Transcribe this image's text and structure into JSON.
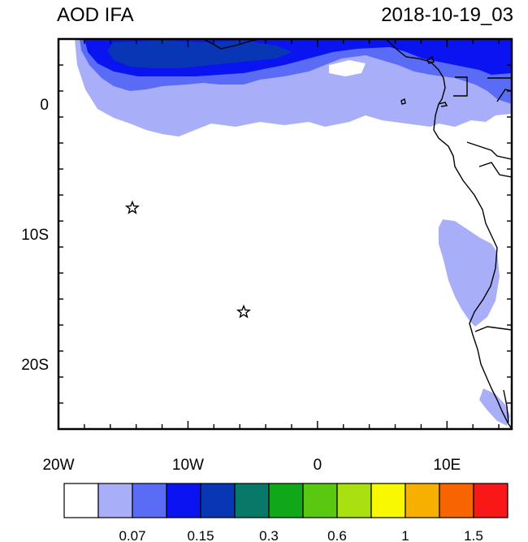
{
  "header": {
    "title": "AOD IFA",
    "date": "2018-10-19_03"
  },
  "axes": {
    "x_ticks": [
      {
        "value": -20,
        "label": "20W"
      },
      {
        "value": -10,
        "label": "10W"
      },
      {
        "value": 0,
        "label": "0"
      },
      {
        "value": 10,
        "label": "10E"
      }
    ],
    "y_ticks": [
      {
        "value": 0,
        "label": "0"
      },
      {
        "value": -10,
        "label": "10S"
      },
      {
        "value": -20,
        "label": "20S"
      }
    ],
    "lon_range": [
      -20,
      15
    ],
    "lat_range": [
      -25,
      5
    ]
  },
  "markers": [
    {
      "name": "star-marker",
      "lon": -14.3,
      "lat": -8.0
    },
    {
      "name": "star-marker",
      "lon": -5.7,
      "lat": -16.0
    }
  ],
  "colorbar": {
    "colors": [
      "#ffffff",
      "#a8aef8",
      "#5a6cf6",
      "#0a14f0",
      "#0836b4",
      "#087868",
      "#10a818",
      "#58c810",
      "#a8e010",
      "#f8f800",
      "#f8b000",
      "#f86400",
      "#f81818"
    ],
    "labels": [
      {
        "boundary": 2,
        "text": "0.07"
      },
      {
        "boundary": 4,
        "text": "0.15"
      },
      {
        "boundary": 6,
        "text": "0.3"
      },
      {
        "boundary": 8,
        "text": "0.6"
      },
      {
        "boundary": 10,
        "text": "1"
      },
      {
        "boundary": 12,
        "text": "1.5"
      }
    ]
  }
}
